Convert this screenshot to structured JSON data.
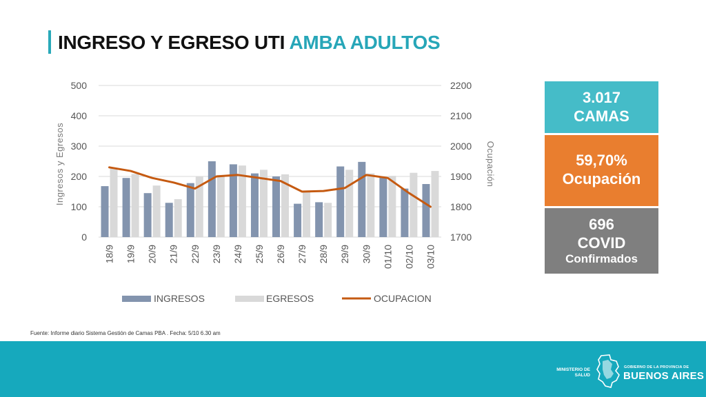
{
  "title": {
    "part1": "INGRESO Y EGRESO UTI",
    "part2": "AMBA ADULTOS"
  },
  "colors": {
    "accent": "#27a6b8",
    "ingresos": "#8394ae",
    "egresos": "#d9d9d9",
    "ocupacion": "#c55a11",
    "beds_panel": "#45bcc8",
    "occupancy_panel": "#e97e2f",
    "covid_panel": "#7f7f7f",
    "footer": "#16a9bd"
  },
  "chart_data": {
    "type": "bar",
    "categories": [
      "18/9",
      "19/9",
      "20/9",
      "21/9",
      "22/9",
      "23/9",
      "24/9",
      "25/9",
      "26/9",
      "27/9",
      "28/9",
      "29/9",
      "30/9",
      "01/10",
      "02/10",
      "03/10"
    ],
    "series": [
      {
        "name": "INGRESOS",
        "type": "bar",
        "axis": "left",
        "values": [
          168,
          195,
          145,
          113,
          178,
          250,
          240,
          210,
          200,
          110,
          115,
          233,
          248,
          197,
          160,
          175
        ]
      },
      {
        "name": "EGRESOS",
        "type": "bar",
        "axis": "left",
        "values": [
          228,
          208,
          170,
          125,
          200,
          205,
          236,
          222,
          207,
          148,
          113,
          222,
          210,
          202,
          212,
          218
        ]
      },
      {
        "name": "OCUPACION",
        "type": "line",
        "axis": "right",
        "values": [
          1930,
          1918,
          1895,
          1880,
          1860,
          1900,
          1905,
          1895,
          1885,
          1850,
          1852,
          1862,
          1905,
          1895,
          1845,
          1800
        ]
      }
    ],
    "ylabel": "Ingresos y Egresos",
    "y2label": "Ocupación",
    "ylim": [
      0,
      500
    ],
    "y2lim": [
      1700,
      2200
    ],
    "yticks": [
      "0",
      "100",
      "200",
      "300",
      "400",
      "500"
    ],
    "y2ticks": [
      "1700",
      "1800",
      "1900",
      "2000",
      "2100",
      "2200"
    ],
    "grid": true,
    "legend_position": "bottom"
  },
  "stats": {
    "beds_value": "3.017",
    "beds_label": "CAMAS",
    "occupancy_value": "59,70%",
    "occupancy_label": "Ocupación",
    "covid_value": "696",
    "covid_label": "COVID",
    "covid_sublabel": "Confirmados"
  },
  "source_text": "Fuente: Informe diario Sistema Gestión de Camas PBA . Fecha: 5/10 6.30 am",
  "footer": {
    "ministry_line1": "MINISTERIO DE",
    "ministry_line2": "SALUD",
    "government_line": "GOBIERNO DE LA PROVINCIA DE",
    "province_name": "BUENOS AIRES"
  }
}
